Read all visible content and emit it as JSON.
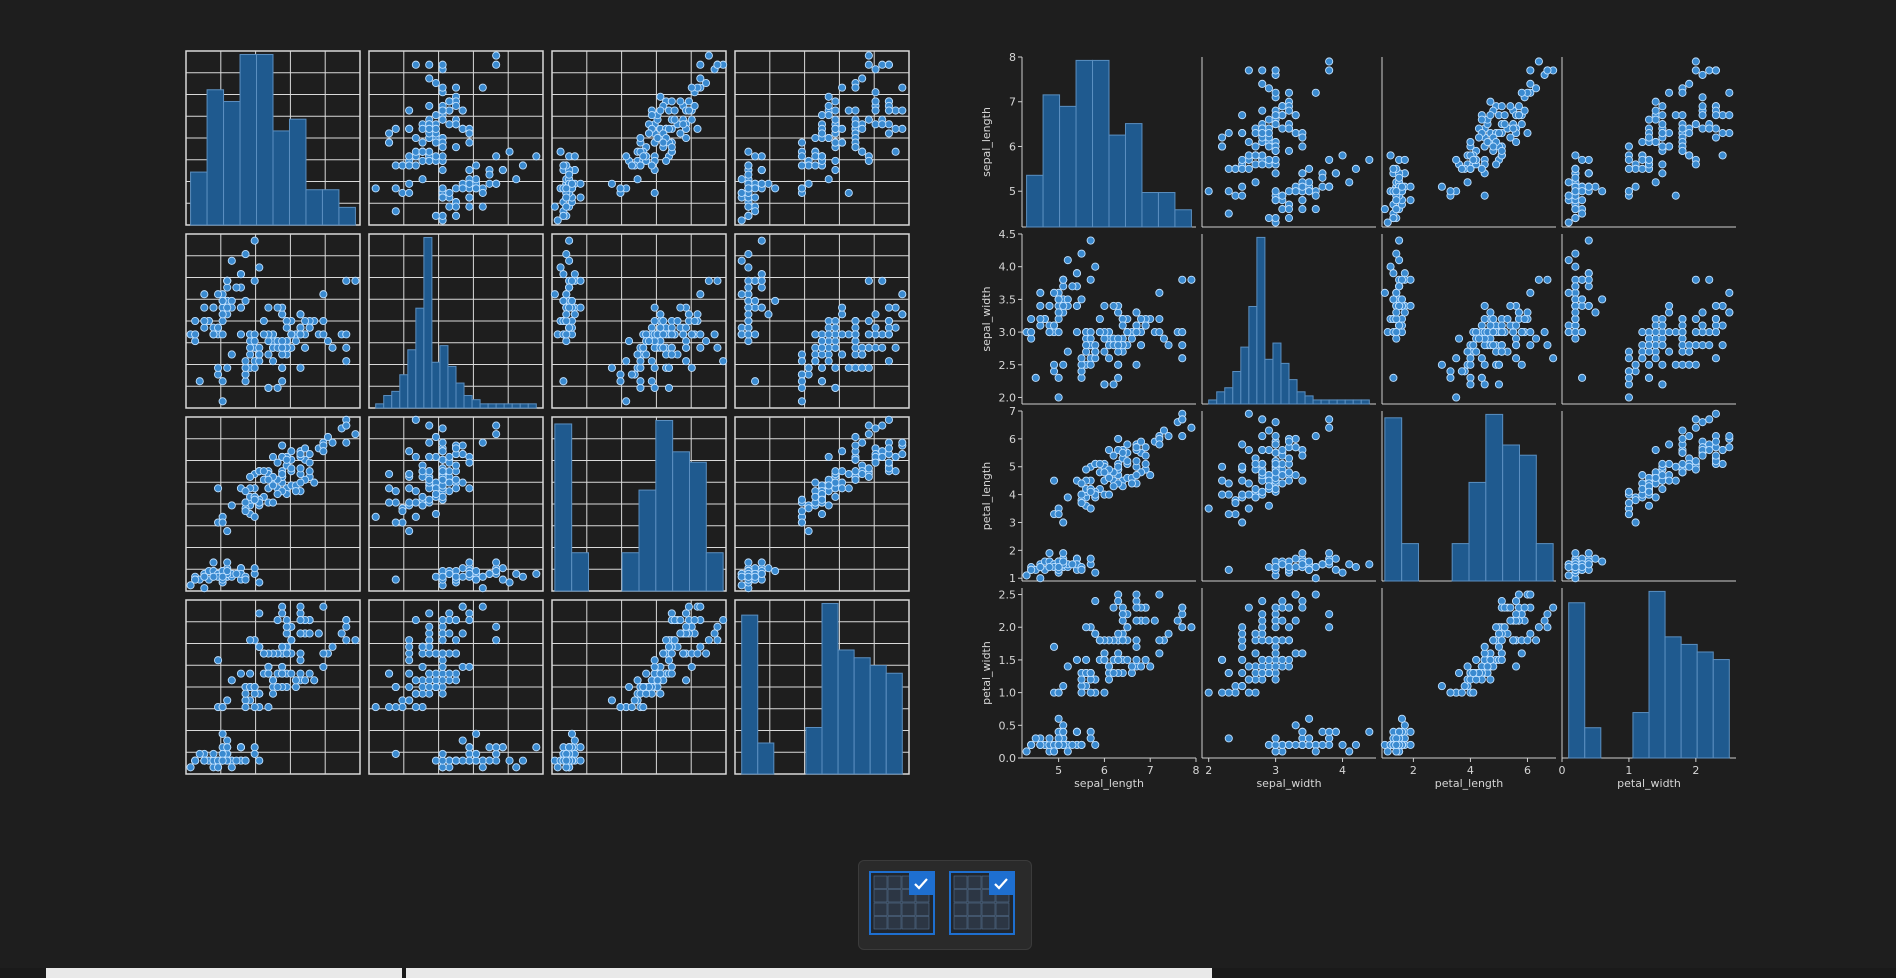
{
  "colors": {
    "background": "#1e1e1e",
    "bar_fill": "#1f5a8f",
    "bar_edge": "#5b8fc0",
    "point_fill": "#3a8ad0",
    "point_edge": "#bfe0ff",
    "grid": "#d9d9d9",
    "axis": "#cfcfcf",
    "text": "#d6d6d6",
    "accent": "#1e6fd0"
  },
  "variables": [
    "sepal_length",
    "sepal_width",
    "petal_length",
    "petal_width"
  ],
  "chart_data": [
    {
      "type": "scatter",
      "kind": "pairplot",
      "grid": true,
      "show_labels": false,
      "variables": [
        "sepal_length",
        "sepal_width",
        "petal_length",
        "petal_width"
      ],
      "ranges": [
        [
          4.2,
          8.0
        ],
        [
          1.9,
          4.5
        ],
        [
          0.9,
          7.0
        ],
        [
          0.0,
          2.6
        ]
      ]
    },
    {
      "type": "scatter",
      "kind": "pairplot",
      "grid": false,
      "show_labels": true,
      "variables": [
        "sepal_length",
        "sepal_width",
        "petal_length",
        "petal_width"
      ],
      "ranges": [
        [
          4.2,
          8.0
        ],
        [
          1.9,
          4.5
        ],
        [
          0.9,
          7.0
        ],
        [
          0.0,
          2.6
        ]
      ],
      "ticks": [
        [
          5,
          6,
          7,
          8
        ],
        [
          2.0,
          2.5,
          3.0,
          3.5,
          4.0,
          4.5
        ],
        [
          1,
          2,
          3,
          4,
          5,
          6,
          7
        ],
        [
          0.0,
          0.5,
          1.0,
          1.5,
          2.0,
          2.5
        ]
      ],
      "xticks": [
        [
          5,
          6,
          7,
          8
        ],
        [
          2,
          3,
          4
        ],
        [
          2,
          4,
          6
        ],
        [
          0,
          1,
          2
        ]
      ],
      "tick_labels": [
        [
          "5",
          "6",
          "7",
          "8"
        ],
        [
          "2.0",
          "2.5",
          "3.0",
          "3.5",
          "4.0",
          "4.5"
        ],
        [
          "1",
          "2",
          "3",
          "4",
          "5",
          "6",
          "7"
        ],
        [
          "0.0",
          "0.5",
          "1.0",
          "1.5",
          "2.0",
          "2.5"
        ]
      ],
      "xtick_labels": [
        [
          "5",
          "6",
          "7",
          "8"
        ],
        [
          "2",
          "3",
          "4"
        ],
        [
          "2",
          "4",
          "6"
        ],
        [
          "0",
          "1",
          "2"
        ]
      ]
    }
  ],
  "histograms": {
    "sepal_length": {
      "edges": [
        4.3,
        4.66,
        5.02,
        5.38,
        5.74,
        6.1,
        6.46,
        6.82,
        7.18,
        7.54,
        7.9
      ],
      "counts": [
        9,
        23,
        21,
        29,
        29,
        16,
        18,
        6,
        6,
        3
      ]
    },
    "sepal_width": {
      "edges": [
        2.0,
        2.12,
        2.24,
        2.36,
        2.48,
        2.6,
        2.72,
        2.84,
        2.96,
        3.08,
        3.2,
        3.32,
        3.44,
        3.56,
        3.68,
        3.8,
        3.92,
        4.04,
        4.16,
        4.28,
        4.4
      ],
      "counts": [
        1,
        3,
        4,
        8,
        14,
        24,
        41,
        11,
        15,
        10,
        6,
        3,
        2,
        1,
        1,
        1,
        1,
        1,
        1,
        1
      ]
    },
    "petal_length": {
      "edges": [
        1.0,
        1.59,
        2.18,
        2.77,
        3.36,
        3.95,
        4.54,
        5.13,
        5.72,
        6.31,
        6.9
      ],
      "counts": [
        48,
        11,
        0,
        0,
        11,
        29,
        49,
        40,
        37,
        11
      ]
    },
    "petal_width": {
      "edges": [
        0.1,
        0.34,
        0.58,
        0.82,
        1.06,
        1.3,
        1.54,
        1.78,
        2.02,
        2.26,
        2.5
      ],
      "counts": [
        41,
        8,
        0,
        0,
        12,
        44,
        32,
        30,
        28,
        26
      ]
    }
  },
  "samples": [
    [
      5.1,
      3.5,
      1.4,
      0.2
    ],
    [
      4.9,
      3.0,
      1.4,
      0.2
    ],
    [
      4.7,
      3.2,
      1.3,
      0.2
    ],
    [
      4.6,
      3.1,
      1.5,
      0.2
    ],
    [
      5.0,
      3.6,
      1.4,
      0.2
    ],
    [
      5.4,
      3.9,
      1.7,
      0.4
    ],
    [
      4.6,
      3.4,
      1.4,
      0.3
    ],
    [
      5.0,
      3.4,
      1.5,
      0.2
    ],
    [
      4.4,
      2.9,
      1.4,
      0.2
    ],
    [
      4.9,
      3.1,
      1.5,
      0.1
    ],
    [
      5.4,
      3.7,
      1.5,
      0.2
    ],
    [
      4.8,
      3.4,
      1.6,
      0.2
    ],
    [
      4.8,
      3.0,
      1.4,
      0.1
    ],
    [
      4.3,
      3.0,
      1.1,
      0.1
    ],
    [
      5.8,
      4.0,
      1.2,
      0.2
    ],
    [
      5.7,
      4.4,
      1.5,
      0.4
    ],
    [
      5.4,
      3.9,
      1.3,
      0.4
    ],
    [
      5.1,
      3.5,
      1.4,
      0.3
    ],
    [
      5.7,
      3.8,
      1.7,
      0.3
    ],
    [
      5.1,
      3.8,
      1.5,
      0.3
    ],
    [
      5.4,
      3.4,
      1.7,
      0.2
    ],
    [
      5.1,
      3.7,
      1.5,
      0.4
    ],
    [
      4.6,
      3.6,
      1.0,
      0.2
    ],
    [
      5.1,
      3.3,
      1.7,
      0.5
    ],
    [
      4.8,
      3.4,
      1.9,
      0.2
    ],
    [
      5.0,
      3.0,
      1.6,
      0.2
    ],
    [
      5.0,
      3.4,
      1.6,
      0.4
    ],
    [
      5.2,
      3.5,
      1.5,
      0.2
    ],
    [
      5.2,
      3.4,
      1.4,
      0.2
    ],
    [
      4.7,
      3.2,
      1.6,
      0.2
    ],
    [
      4.8,
      3.1,
      1.6,
      0.2
    ],
    [
      5.4,
      3.4,
      1.5,
      0.4
    ],
    [
      5.2,
      4.1,
      1.5,
      0.1
    ],
    [
      5.5,
      4.2,
      1.4,
      0.2
    ],
    [
      4.9,
      3.1,
      1.5,
      0.2
    ],
    [
      5.0,
      3.2,
      1.2,
      0.2
    ],
    [
      5.5,
      3.5,
      1.3,
      0.2
    ],
    [
      4.9,
      3.6,
      1.4,
      0.1
    ],
    [
      4.4,
      3.0,
      1.3,
      0.2
    ],
    [
      5.1,
      3.4,
      1.5,
      0.2
    ],
    [
      5.0,
      3.5,
      1.3,
      0.3
    ],
    [
      4.5,
      2.3,
      1.3,
      0.3
    ],
    [
      4.4,
      3.2,
      1.3,
      0.2
    ],
    [
      5.0,
      3.5,
      1.6,
      0.6
    ],
    [
      5.1,
      3.8,
      1.9,
      0.4
    ],
    [
      4.8,
      3.0,
      1.4,
      0.3
    ],
    [
      5.1,
      3.8,
      1.6,
      0.2
    ],
    [
      4.6,
      3.2,
      1.4,
      0.2
    ],
    [
      5.3,
      3.7,
      1.5,
      0.2
    ],
    [
      5.0,
      3.3,
      1.4,
      0.2
    ],
    [
      7.0,
      3.2,
      4.7,
      1.4
    ],
    [
      6.4,
      3.2,
      4.5,
      1.5
    ],
    [
      6.9,
      3.1,
      4.9,
      1.5
    ],
    [
      5.5,
      2.3,
      4.0,
      1.3
    ],
    [
      6.5,
      2.8,
      4.6,
      1.5
    ],
    [
      5.7,
      2.8,
      4.5,
      1.3
    ],
    [
      6.3,
      3.3,
      4.7,
      1.6
    ],
    [
      4.9,
      2.4,
      3.3,
      1.0
    ],
    [
      6.6,
      2.9,
      4.6,
      1.3
    ],
    [
      5.2,
      2.7,
      3.9,
      1.4
    ],
    [
      5.0,
      2.0,
      3.5,
      1.0
    ],
    [
      5.9,
      3.0,
      4.2,
      1.5
    ],
    [
      6.0,
      2.2,
      4.0,
      1.0
    ],
    [
      6.1,
      2.9,
      4.7,
      1.4
    ],
    [
      5.6,
      2.9,
      3.6,
      1.3
    ],
    [
      6.7,
      3.1,
      4.4,
      1.4
    ],
    [
      5.6,
      3.0,
      4.5,
      1.5
    ],
    [
      5.8,
      2.7,
      4.1,
      1.0
    ],
    [
      6.2,
      2.2,
      4.5,
      1.5
    ],
    [
      5.6,
      2.5,
      3.9,
      1.1
    ],
    [
      5.9,
      3.2,
      4.8,
      1.8
    ],
    [
      6.1,
      2.8,
      4.0,
      1.3
    ],
    [
      6.3,
      2.5,
      4.9,
      1.5
    ],
    [
      6.1,
      2.8,
      4.7,
      1.2
    ],
    [
      6.4,
      2.9,
      4.3,
      1.3
    ],
    [
      6.6,
      3.0,
      4.4,
      1.4
    ],
    [
      6.8,
      2.8,
      4.8,
      1.4
    ],
    [
      6.7,
      3.0,
      5.0,
      1.7
    ],
    [
      6.0,
      2.9,
      4.5,
      1.5
    ],
    [
      5.7,
      2.6,
      3.5,
      1.0
    ],
    [
      5.5,
      2.4,
      3.8,
      1.1
    ],
    [
      5.5,
      2.4,
      3.7,
      1.0
    ],
    [
      5.8,
      2.7,
      3.9,
      1.2
    ],
    [
      6.0,
      2.7,
      5.1,
      1.6
    ],
    [
      5.4,
      3.0,
      4.5,
      1.5
    ],
    [
      6.0,
      3.4,
      4.5,
      1.6
    ],
    [
      6.7,
      3.1,
      4.7,
      1.5
    ],
    [
      6.3,
      2.3,
      4.4,
      1.3
    ],
    [
      5.6,
      3.0,
      4.1,
      1.3
    ],
    [
      5.5,
      2.5,
      4.0,
      1.3
    ],
    [
      5.5,
      2.6,
      4.4,
      1.2
    ],
    [
      6.1,
      3.0,
      4.6,
      1.4
    ],
    [
      5.8,
      2.6,
      4.0,
      1.2
    ],
    [
      5.0,
      2.3,
      3.3,
      1.0
    ],
    [
      5.6,
      2.7,
      4.2,
      1.3
    ],
    [
      5.7,
      3.0,
      4.2,
      1.2
    ],
    [
      5.7,
      2.9,
      4.2,
      1.3
    ],
    [
      6.2,
      2.9,
      4.3,
      1.3
    ],
    [
      5.1,
      2.5,
      3.0,
      1.1
    ],
    [
      5.7,
      2.8,
      4.1,
      1.3
    ],
    [
      6.3,
      3.3,
      6.0,
      2.5
    ],
    [
      5.8,
      2.7,
      5.1,
      1.9
    ],
    [
      7.1,
      3.0,
      5.9,
      2.1
    ],
    [
      6.3,
      2.9,
      5.6,
      1.8
    ],
    [
      6.5,
      3.0,
      5.8,
      2.2
    ],
    [
      7.6,
      3.0,
      6.6,
      2.1
    ],
    [
      4.9,
      2.5,
      4.5,
      1.7
    ],
    [
      7.3,
      2.9,
      6.3,
      1.8
    ],
    [
      6.7,
      2.5,
      5.8,
      1.8
    ],
    [
      7.2,
      3.6,
      6.1,
      2.5
    ],
    [
      6.5,
      3.2,
      5.1,
      2.0
    ],
    [
      6.4,
      2.7,
      5.3,
      1.9
    ],
    [
      6.8,
      3.0,
      5.5,
      2.1
    ],
    [
      5.7,
      2.5,
      5.0,
      2.0
    ],
    [
      5.8,
      2.8,
      5.1,
      2.4
    ],
    [
      6.4,
      3.2,
      5.3,
      2.3
    ],
    [
      6.5,
      3.0,
      5.5,
      1.8
    ],
    [
      7.7,
      3.8,
      6.7,
      2.2
    ],
    [
      7.7,
      2.6,
      6.9,
      2.3
    ],
    [
      6.0,
      2.2,
      5.0,
      1.5
    ],
    [
      6.9,
      3.2,
      5.7,
      2.3
    ],
    [
      5.6,
      2.8,
      4.9,
      2.0
    ],
    [
      7.7,
      2.8,
      6.7,
      2.0
    ],
    [
      6.3,
      2.7,
      4.9,
      1.8
    ],
    [
      6.7,
      3.3,
      5.7,
      2.1
    ],
    [
      7.2,
      3.2,
      6.0,
      1.8
    ],
    [
      6.2,
      2.8,
      4.8,
      1.8
    ],
    [
      6.1,
      3.0,
      4.9,
      1.8
    ],
    [
      6.4,
      2.8,
      5.6,
      2.1
    ],
    [
      7.2,
      3.0,
      5.8,
      1.6
    ],
    [
      7.4,
      2.8,
      6.1,
      1.9
    ],
    [
      7.9,
      3.8,
      6.4,
      2.0
    ],
    [
      6.4,
      2.8,
      5.6,
      2.2
    ],
    [
      6.3,
      2.8,
      5.1,
      1.5
    ],
    [
      6.1,
      2.6,
      5.6,
      1.4
    ],
    [
      7.7,
      3.0,
      6.1,
      2.3
    ],
    [
      6.3,
      3.4,
      5.6,
      2.4
    ],
    [
      6.4,
      3.1,
      5.5,
      1.8
    ],
    [
      6.0,
      3.0,
      4.8,
      1.8
    ],
    [
      6.9,
      3.1,
      5.4,
      2.1
    ],
    [
      6.7,
      3.1,
      5.6,
      2.4
    ],
    [
      6.9,
      3.1,
      5.1,
      2.3
    ],
    [
      5.8,
      2.7,
      5.1,
      1.9
    ],
    [
      6.8,
      3.2,
      5.9,
      2.3
    ],
    [
      6.7,
      3.3,
      5.7,
      2.5
    ],
    [
      6.7,
      3.0,
      5.2,
      2.3
    ],
    [
      6.3,
      2.5,
      5.0,
      1.9
    ],
    [
      6.5,
      3.0,
      5.2,
      2.0
    ],
    [
      6.2,
      3.4,
      5.4,
      2.3
    ],
    [
      5.9,
      3.0,
      5.1,
      1.8
    ]
  ],
  "thumbnails": [
    {
      "label": "",
      "selected": true
    },
    {
      "label": "",
      "selected": true
    }
  ]
}
